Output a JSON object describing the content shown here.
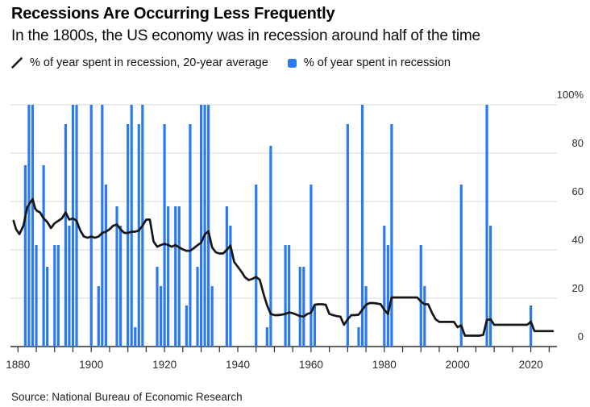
{
  "header": {
    "title": "Recessions Are Occurring Less Frequently",
    "subtitle": "In the 1800s, the US economy was in recession around half of the time"
  },
  "legend": {
    "avg_label": "% of year spent in recession, 20-year average",
    "bar_label": "% of year spent in recession"
  },
  "source": {
    "text": "Source: National Bureau of Economic Research"
  },
  "colors": {
    "bar": "#2b7af0",
    "line": "#161616",
    "grid": "#d9d9d9",
    "axis": "#2e2e2e",
    "tick_label": "#2b2b2b",
    "background": "#ffffff"
  },
  "chart_data": {
    "type": "bar+line",
    "title": "Recessions Are Occurring Less Frequently",
    "xlabel": "",
    "ylabel": "% of year spent in recession",
    "x_axis": {
      "range": [
        1878,
        2027
      ],
      "minor_tick_interval_years": 5,
      "labeled_ticks": [
        "1880",
        "1900",
        "1920",
        "1940",
        "1960",
        "1980",
        "2000",
        "2020"
      ]
    },
    "y_axis": {
      "unit": "percent",
      "range": [
        0,
        100
      ],
      "side": "right",
      "grid": true,
      "tick_values": [
        100,
        80,
        60,
        40,
        20,
        0
      ],
      "tick_labels": [
        "100%",
        "80",
        "60",
        "40",
        "20",
        "0"
      ]
    },
    "legend_position": "top",
    "series": [
      {
        "name": "% of year spent in recession",
        "type": "bar",
        "color": "#2b7af0",
        "data": [
          [
            1882,
            75
          ],
          [
            1883,
            100
          ],
          [
            1884,
            100
          ],
          [
            1885,
            42
          ],
          [
            1887,
            75
          ],
          [
            1888,
            33
          ],
          [
            1890,
            42
          ],
          [
            1891,
            42
          ],
          [
            1893,
            92
          ],
          [
            1894,
            50
          ],
          [
            1895,
            100
          ],
          [
            1896,
            100
          ],
          [
            1900,
            100
          ],
          [
            1902,
            25
          ],
          [
            1903,
            100
          ],
          [
            1904,
            67
          ],
          [
            1907,
            58
          ],
          [
            1908,
            50
          ],
          [
            1910,
            92
          ],
          [
            1911,
            100
          ],
          [
            1912,
            8
          ],
          [
            1913,
            92
          ],
          [
            1914,
            100
          ],
          [
            1918,
            33
          ],
          [
            1919,
            25
          ],
          [
            1920,
            92
          ],
          [
            1921,
            58
          ],
          [
            1923,
            58
          ],
          [
            1924,
            58
          ],
          [
            1926,
            17
          ],
          [
            1927,
            92
          ],
          [
            1929,
            33
          ],
          [
            1930,
            100
          ],
          [
            1931,
            100
          ],
          [
            1932,
            100
          ],
          [
            1933,
            25
          ],
          [
            1937,
            58
          ],
          [
            1938,
            50
          ],
          [
            1945,
            67
          ],
          [
            1948,
            8
          ],
          [
            1949,
            83
          ],
          [
            1953,
            42
          ],
          [
            1954,
            42
          ],
          [
            1957,
            33
          ],
          [
            1958,
            33
          ],
          [
            1960,
            67
          ],
          [
            1961,
            17
          ],
          [
            1970,
            92
          ],
          [
            1973,
            8
          ],
          [
            1974,
            100
          ],
          [
            1975,
            25
          ],
          [
            1980,
            50
          ],
          [
            1981,
            42
          ],
          [
            1982,
            92
          ],
          [
            1990,
            42
          ],
          [
            1991,
            25
          ],
          [
            2001,
            67
          ],
          [
            2008,
            100
          ],
          [
            2009,
            50
          ],
          [
            2020,
            17
          ]
        ]
      },
      {
        "name": "% of year spent in recession, 20-year average",
        "type": "line",
        "color": "#161616",
        "data": [
          [
            1878.8,
            52
          ],
          [
            1879.5,
            48.5
          ],
          [
            1880.4,
            46.5
          ],
          [
            1881.5,
            50
          ],
          [
            1882.5,
            57.5
          ],
          [
            1883.3,
            59.5
          ],
          [
            1884,
            61
          ],
          [
            1884.7,
            57
          ],
          [
            1885.3,
            56
          ],
          [
            1886,
            55.5
          ],
          [
            1887,
            53
          ],
          [
            1888,
            51.5
          ],
          [
            1889,
            49
          ],
          [
            1890,
            51
          ],
          [
            1891,
            52
          ],
          [
            1892,
            53
          ],
          [
            1893,
            55.5
          ],
          [
            1894,
            52.5
          ],
          [
            1895,
            53
          ],
          [
            1896,
            52
          ],
          [
            1897,
            48
          ],
          [
            1898,
            45.5
          ],
          [
            1899,
            45
          ],
          [
            1900,
            45.5
          ],
          [
            1901,
            45
          ],
          [
            1902,
            45.5
          ],
          [
            1903,
            47
          ],
          [
            1904,
            47.5
          ],
          [
            1905,
            48.5
          ],
          [
            1906,
            50
          ],
          [
            1907,
            50.5
          ],
          [
            1908,
            48.5
          ],
          [
            1909,
            47
          ],
          [
            1910,
            47
          ],
          [
            1911,
            47.5
          ],
          [
            1912,
            47.5
          ],
          [
            1913,
            48
          ],
          [
            1914,
            50
          ],
          [
            1915,
            52.5
          ],
          [
            1916,
            52.5
          ],
          [
            1917,
            43.5
          ],
          [
            1918,
            41.3
          ],
          [
            1919,
            42
          ],
          [
            1920,
            42.5
          ],
          [
            1921,
            42
          ],
          [
            1922,
            41.3
          ],
          [
            1923,
            42
          ],
          [
            1924,
            41
          ],
          [
            1925,
            40.2
          ],
          [
            1926,
            39.6
          ],
          [
            1927,
            39.6
          ],
          [
            1928,
            40.7
          ],
          [
            1929,
            41.9
          ],
          [
            1930,
            43
          ],
          [
            1931,
            46.4
          ],
          [
            1932,
            47.7
          ],
          [
            1933,
            41
          ],
          [
            1934,
            39
          ],
          [
            1935,
            38.5
          ],
          [
            1936,
            38.5
          ],
          [
            1937,
            40
          ],
          [
            1938,
            41.8
          ],
          [
            1939,
            35
          ],
          [
            1940,
            33
          ],
          [
            1941,
            31
          ],
          [
            1942,
            28.6
          ],
          [
            1943,
            27.5
          ],
          [
            1944,
            28
          ],
          [
            1945,
            28.8
          ],
          [
            1946,
            27.6
          ],
          [
            1947,
            22
          ],
          [
            1948,
            17
          ],
          [
            1949,
            13.5
          ],
          [
            1950,
            13
          ],
          [
            1951,
            13
          ],
          [
            1952,
            13.2
          ],
          [
            1953,
            13.5
          ],
          [
            1954,
            14.1
          ],
          [
            1955,
            13.8
          ],
          [
            1956,
            13.2
          ],
          [
            1957,
            12.6
          ],
          [
            1958,
            12.4
          ],
          [
            1959,
            13.5
          ],
          [
            1960,
            14
          ],
          [
            1961,
            17.3
          ],
          [
            1962,
            17.5
          ],
          [
            1963,
            17.5
          ],
          [
            1964,
            17.3
          ],
          [
            1965,
            13.5
          ],
          [
            1966,
            13
          ],
          [
            1967,
            12.6
          ],
          [
            1968,
            12.4
          ],
          [
            1969,
            9
          ],
          [
            1970,
            11.3
          ],
          [
            1971,
            13
          ],
          [
            1972,
            13
          ],
          [
            1973,
            13.2
          ],
          [
            1974,
            15.2
          ],
          [
            1975,
            17.3
          ],
          [
            1976,
            18
          ],
          [
            1977,
            18
          ],
          [
            1978,
            17.8
          ],
          [
            1979,
            17.5
          ],
          [
            1980,
            15.2
          ],
          [
            1981,
            13.5
          ],
          [
            1982,
            20.3
          ],
          [
            1984,
            20.3
          ],
          [
            1986,
            20.3
          ],
          [
            1988,
            20.3
          ],
          [
            1989,
            20.3
          ],
          [
            1990,
            18.6
          ],
          [
            1991,
            17.5
          ],
          [
            1992,
            17.5
          ],
          [
            1993,
            14
          ],
          [
            1994,
            11.3
          ],
          [
            1995,
            10.2
          ],
          [
            1997,
            10.2
          ],
          [
            1999,
            10.2
          ],
          [
            2000,
            8
          ],
          [
            2001,
            8.8
          ],
          [
            2002,
            4.5
          ],
          [
            2004,
            4.5
          ],
          [
            2006,
            4.5
          ],
          [
            2007,
            4.8
          ],
          [
            2008,
            11
          ],
          [
            2009,
            11.3
          ],
          [
            2010,
            9
          ],
          [
            2013,
            9
          ],
          [
            2016,
            9
          ],
          [
            2019,
            9
          ],
          [
            2020,
            10.3
          ],
          [
            2021,
            6.4
          ],
          [
            2023,
            6.4
          ],
          [
            2026,
            6.4
          ]
        ]
      }
    ]
  }
}
